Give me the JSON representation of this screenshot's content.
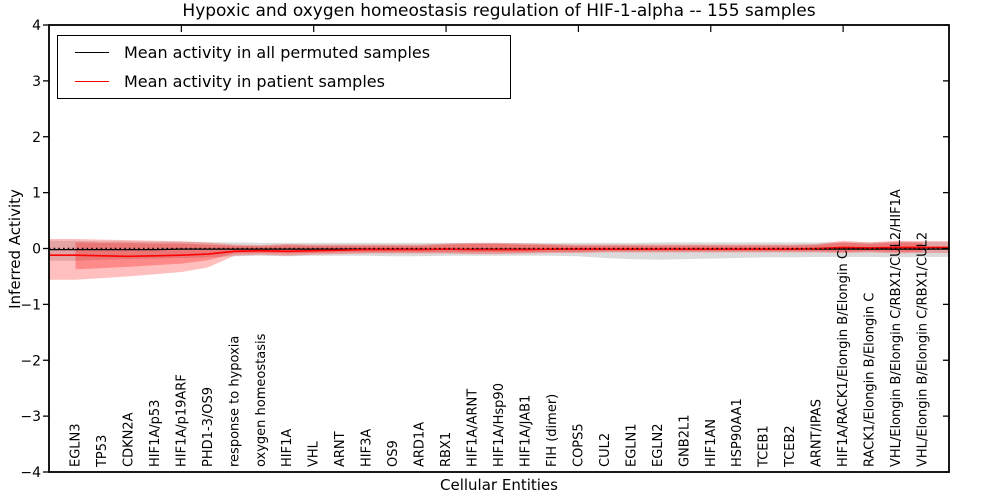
{
  "title": "Hypoxic and oxygen homeostasis regulation of HIF-1-alpha -- 155 samples",
  "axes": {
    "x_label": "Cellular Entities",
    "y_label": "Inferred Activity",
    "y_tick_values": [
      4,
      3,
      2,
      1,
      0,
      -1,
      -2,
      -3,
      -4
    ],
    "y_tick_labels": [
      "4",
      "3",
      "2",
      "1",
      "0",
      "−1",
      "−2",
      "−3",
      "−4"
    ],
    "top_tick_positions": [
      5,
      10,
      15,
      20,
      25,
      30
    ]
  },
  "legend": {
    "entries": [
      {
        "label": "Mean activity in all permuted samples",
        "color": "#000000"
      },
      {
        "label": "Mean activity in patient samples",
        "color": "#ff0000"
      }
    ]
  },
  "colors": {
    "permuted_band": "#999999",
    "patient_band": "#ff0000",
    "permuted_line": "#000000",
    "patient_line": "#ff0000",
    "zero_line": "#000000"
  },
  "chart_data": {
    "type": "line",
    "title": "Hypoxic and oxygen homeostasis regulation of HIF-1-alpha -- 155 samples",
    "xlabel": "Cellular Entities",
    "ylabel": "Inferred Activity",
    "ylim": [
      -4,
      4
    ],
    "xlim": [
      0,
      34
    ],
    "grid": false,
    "legend_position": "upper left",
    "categories": [
      "EGLN3",
      "TP53",
      "CDKN2A",
      "HIF1A/p53",
      "HIF1A/p19ARF",
      "PHD1-3/OS9",
      "response to hypoxia",
      "oxygen homeostasis",
      "HIF1A",
      "VHL",
      "ARNT",
      "HIF3A",
      "OS9",
      "ARD1A",
      "RBX1",
      "HIF1A/ARNT",
      "HIF1A/Hsp90",
      "HIF1A/JAB1",
      "FIH (dimer)",
      "COPS5",
      "CUL2",
      "EGLN1",
      "EGLN2",
      "GNB2L1",
      "HIF1AN",
      "HSP90AA1",
      "TCEB1",
      "TCEB2",
      "ARNT/IPAS",
      "HIF1A/RACK1/Elongin B/Elongin C",
      "RACK1/Elongin B/Elongin C",
      "VHL/Elongin B/Elongin C/RBX1/CUL2/HIF1A",
      "VHL/Elongin B/Elongin C/RBX1/CUL2"
    ],
    "series": [
      {
        "name": "Mean activity in all permuted samples",
        "color": "#000000",
        "values": [
          -0.02,
          -0.02,
          -0.02,
          -0.02,
          -0.01,
          -0.01,
          -0.01,
          -0.01,
          -0.01,
          -0.01,
          -0.01,
          -0.01,
          -0.01,
          -0.01,
          -0.01,
          -0.01,
          -0.01,
          -0.01,
          -0.01,
          -0.01,
          -0.01,
          -0.01,
          -0.01,
          -0.01,
          -0.01,
          -0.01,
          -0.01,
          -0.01,
          -0.01,
          -0.01,
          -0.01,
          -0.01,
          -0.01
        ]
      },
      {
        "name": "Mean activity in patient samples",
        "color": "#ff0000",
        "values": [
          -0.12,
          -0.13,
          -0.14,
          -0.13,
          -0.12,
          -0.1,
          -0.05,
          -0.04,
          -0.05,
          -0.04,
          -0.03,
          -0.02,
          -0.02,
          -0.02,
          -0.01,
          -0.02,
          -0.02,
          -0.02,
          -0.01,
          -0.01,
          -0.01,
          -0.01,
          -0.01,
          -0.01,
          -0.01,
          -0.01,
          -0.01,
          -0.01,
          0.0,
          0.02,
          0.01,
          0.02,
          0.02
        ]
      }
    ],
    "bands": [
      {
        "name": "permuted samples range",
        "color": "#999999",
        "opacity": 0.35,
        "extend_to_edges": true,
        "upper": [
          0.14,
          0.13,
          0.13,
          0.12,
          0.12,
          0.11,
          0.11,
          0.1,
          0.1,
          0.1,
          0.1,
          0.1,
          0.1,
          0.1,
          0.1,
          0.1,
          0.1,
          0.1,
          0.1,
          0.1,
          0.1,
          0.1,
          0.11,
          0.11,
          0.11,
          0.11,
          0.11,
          0.11,
          0.11,
          0.11,
          0.11,
          0.12,
          0.12
        ],
        "lower": [
          -0.22,
          -0.2,
          -0.19,
          -0.18,
          -0.17,
          -0.16,
          -0.14,
          -0.13,
          -0.14,
          -0.13,
          -0.13,
          -0.13,
          -0.14,
          -0.14,
          -0.13,
          -0.13,
          -0.13,
          -0.13,
          -0.13,
          -0.14,
          -0.17,
          -0.19,
          -0.2,
          -0.19,
          -0.18,
          -0.17,
          -0.16,
          -0.16,
          -0.15,
          -0.15,
          -0.15,
          -0.16,
          -0.15
        ]
      },
      {
        "name": "patient samples outer range",
        "color": "#ff0000",
        "opacity": 0.25,
        "extend_to_edges": true,
        "upper": [
          0.17,
          0.16,
          0.15,
          0.14,
          0.13,
          0.11,
          0.07,
          0.06,
          0.08,
          0.07,
          0.07,
          0.07,
          0.07,
          0.07,
          0.09,
          0.1,
          0.1,
          0.09,
          0.08,
          0.07,
          0.07,
          0.07,
          0.07,
          0.07,
          0.07,
          0.07,
          0.07,
          0.07,
          0.08,
          0.14,
          0.11,
          0.14,
          0.13
        ],
        "lower": [
          -0.56,
          -0.53,
          -0.5,
          -0.46,
          -0.42,
          -0.34,
          -0.13,
          -0.11,
          -0.13,
          -0.11,
          -0.1,
          -0.09,
          -0.09,
          -0.09,
          -0.09,
          -0.1,
          -0.1,
          -0.09,
          -0.08,
          -0.08,
          -0.07,
          -0.07,
          -0.07,
          -0.07,
          -0.07,
          -0.07,
          -0.07,
          -0.07,
          -0.07,
          -0.08,
          -0.07,
          -0.09,
          -0.08
        ]
      },
      {
        "name": "patient samples inner range",
        "color": "#ff0000",
        "opacity": 0.28,
        "extend_to_edges": false,
        "upper": [
          0.11,
          0.1,
          0.1,
          0.09,
          0.09,
          0.07,
          0.05,
          0.04,
          0.06,
          0.05,
          0.05,
          0.05,
          0.05,
          0.05,
          0.07,
          0.08,
          0.08,
          0.07,
          0.06,
          0.05,
          0.05,
          0.05,
          0.05,
          0.05,
          0.05,
          0.05,
          0.05,
          0.05,
          0.06,
          0.11,
          0.08,
          0.11,
          0.1
        ],
        "lower": [
          -0.37,
          -0.35,
          -0.33,
          -0.3,
          -0.27,
          -0.21,
          -0.09,
          -0.08,
          -0.09,
          -0.08,
          -0.07,
          -0.07,
          -0.07,
          -0.07,
          -0.07,
          -0.07,
          -0.07,
          -0.07,
          -0.06,
          -0.06,
          -0.05,
          -0.05,
          -0.05,
          -0.05,
          -0.05,
          -0.05,
          -0.05,
          -0.05,
          -0.05,
          -0.06,
          -0.05,
          -0.06,
          -0.06
        ]
      }
    ],
    "zero_line": {
      "y": 0,
      "style": "dotted",
      "color": "#000000"
    }
  }
}
